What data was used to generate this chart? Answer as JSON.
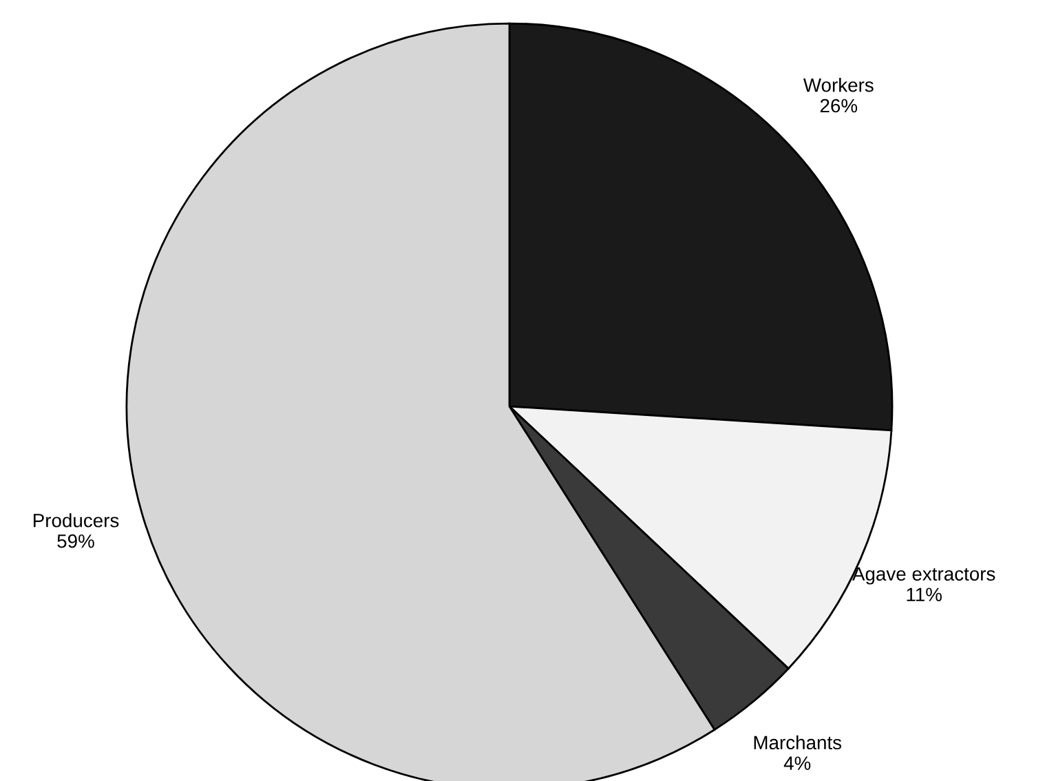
{
  "chart_data": {
    "type": "pie",
    "categories": [
      "Workers",
      "Agave extractors",
      "Marchants",
      "Producers"
    ],
    "values": [
      26,
      11,
      4,
      59
    ],
    "value_labels": [
      "26%",
      "11%",
      "4%",
      "59%"
    ],
    "colors": [
      "#1a1a1a",
      "#f2f2f2",
      "#3a3a3a",
      "#d6d6d6"
    ],
    "legend": false
  }
}
